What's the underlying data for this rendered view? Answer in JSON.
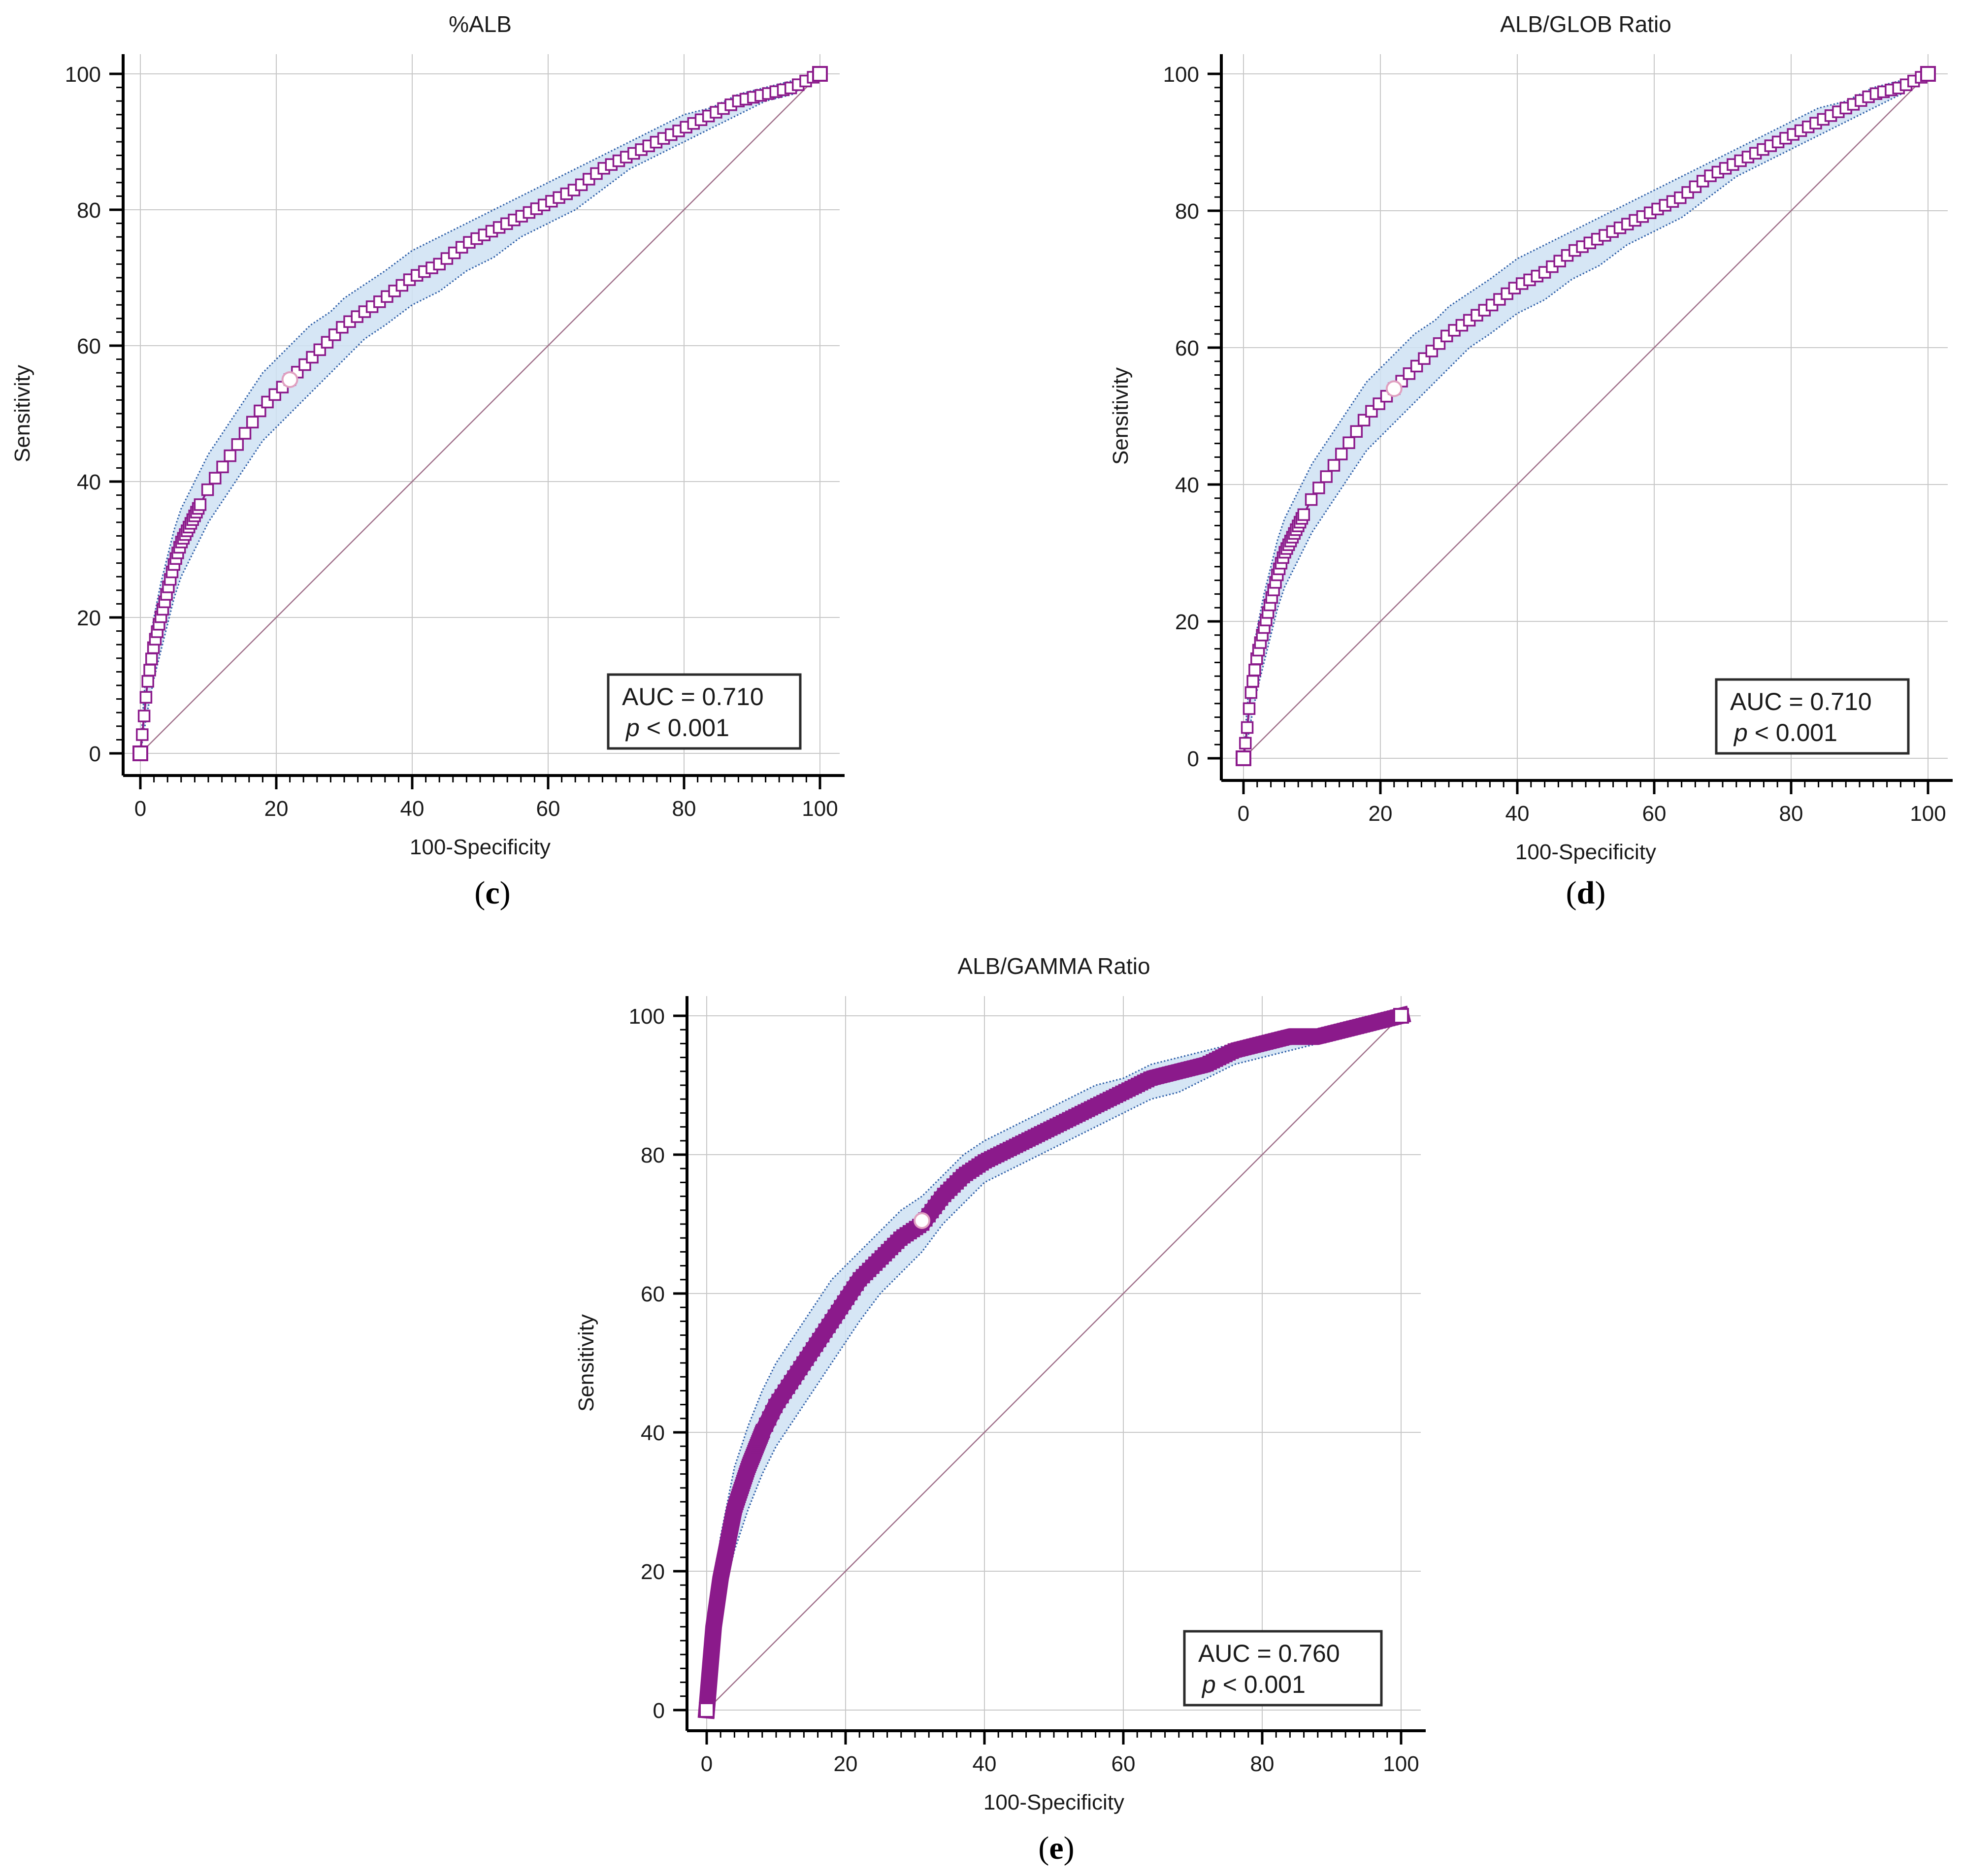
{
  "colors": {
    "curve": "#8b1a8b",
    "marker_fill": "#ffffff",
    "ci_fill": "#cfe2f3",
    "ci_line": "#2e5fa8",
    "diagonal": "#a0708a",
    "grid": "#c8c8c8",
    "axis": "#000000"
  },
  "chart_data": [
    {
      "type": "line",
      "id": "c",
      "title": "%ALB",
      "xlabel": "100-Specificity",
      "ylabel": "Sensitivity",
      "xlim": [
        0,
        100
      ],
      "ylim": [
        0,
        100
      ],
      "xticks": [
        0,
        20,
        40,
        60,
        80,
        100
      ],
      "yticks": [
        0,
        20,
        40,
        60,
        80,
        100
      ],
      "grid": true,
      "panel_label": "c",
      "auc_text": "AUC = 0.710",
      "p_symbol": "p",
      "p_text": " < 0.001",
      "annotation_position": "bottom-right",
      "marker_style": "open-square",
      "series": [
        {
          "x": [
            0,
            0.5,
            1,
            2,
            3,
            4,
            5,
            6,
            8,
            10,
            12,
            14,
            16,
            18,
            20,
            22,
            25,
            28,
            30,
            33,
            36,
            40,
            44,
            48,
            52,
            56,
            60,
            64,
            68,
            72,
            76,
            80,
            84,
            88,
            92,
            96,
            100
          ],
          "y": [
            0,
            5,
            10,
            16,
            20,
            24,
            28,
            31,
            35,
            39,
            42,
            45,
            48,
            51,
            53,
            55,
            58,
            61,
            63,
            65,
            67,
            70,
            72,
            75,
            77,
            79,
            81,
            83,
            86,
            88,
            90,
            92,
            94,
            96,
            97,
            98,
            100
          ]
        }
      ],
      "ci_upper": [
        0,
        8,
        14,
        20,
        25,
        29,
        33,
        36,
        40,
        44,
        47,
        50,
        53,
        56,
        58,
        60,
        63,
        65,
        67,
        69,
        71,
        74,
        76,
        78,
        80,
        82,
        84,
        86,
        88,
        90,
        92,
        94,
        95,
        97,
        98,
        99,
        100
      ],
      "ci_lower": [
        0,
        3,
        6,
        11,
        15,
        19,
        23,
        26,
        30,
        34,
        37,
        40,
        43,
        46,
        48,
        50,
        53,
        56,
        58,
        61,
        63,
        66,
        68,
        71,
        73,
        76,
        78,
        80,
        83,
        86,
        88,
        90,
        92,
        94,
        96,
        97,
        100
      ],
      "cutoff_point": {
        "x": 22,
        "y": 55
      }
    },
    {
      "type": "line",
      "id": "d",
      "title": "ALB/GLOB Ratio",
      "xlabel": "100-Specificity",
      "ylabel": "Sensitivity",
      "xlim": [
        0,
        100
      ],
      "ylim": [
        0,
        100
      ],
      "xticks": [
        0,
        20,
        40,
        60,
        80,
        100
      ],
      "yticks": [
        0,
        20,
        40,
        60,
        80,
        100
      ],
      "grid": true,
      "panel_label": "d",
      "auc_text": "AUC = 0.710",
      "p_symbol": "p",
      "p_text": " < 0.001",
      "annotation_position": "bottom-right",
      "marker_style": "open-square",
      "series": [
        {
          "x": [
            0,
            0.5,
            1,
            2,
            3,
            4,
            5,
            6,
            8,
            10,
            12,
            14,
            16,
            18,
            20,
            22,
            25,
            28,
            30,
            33,
            36,
            40,
            44,
            48,
            52,
            56,
            60,
            64,
            68,
            72,
            76,
            80,
            84,
            88,
            92,
            96,
            100
          ],
          "y": [
            0,
            4,
            9,
            15,
            19,
            23,
            27,
            30,
            34,
            38,
            41,
            44,
            47,
            50,
            52,
            54,
            57,
            60,
            62,
            64,
            66,
            69,
            71,
            74,
            76,
            78,
            80,
            82,
            85,
            87,
            89,
            91,
            93,
            95,
            97,
            98,
            100
          ]
        }
      ],
      "ci_upper": [
        0,
        7,
        13,
        19,
        24,
        28,
        32,
        35,
        39,
        43,
        46,
        49,
        52,
        55,
        57,
        59,
        62,
        64,
        66,
        68,
        70,
        73,
        75,
        77,
        79,
        81,
        83,
        85,
        87,
        89,
        91,
        93,
        95,
        96,
        98,
        99,
        100
      ],
      "ci_lower": [
        0,
        2,
        5,
        10,
        14,
        18,
        22,
        25,
        29,
        33,
        36,
        39,
        42,
        45,
        47,
        49,
        52,
        55,
        57,
        60,
        62,
        65,
        67,
        70,
        72,
        75,
        77,
        79,
        82,
        85,
        87,
        89,
        91,
        93,
        95,
        97,
        100
      ],
      "cutoff_point": {
        "x": 22,
        "y": 54
      }
    },
    {
      "type": "line",
      "id": "e",
      "title": "ALB/GAMMA Ratio",
      "xlabel": "100-Specificity",
      "ylabel": "Sensitivity",
      "xlim": [
        0,
        100
      ],
      "ylim": [
        0,
        100
      ],
      "xticks": [
        0,
        20,
        40,
        60,
        80,
        100
      ],
      "yticks": [
        0,
        20,
        40,
        60,
        80,
        100
      ],
      "grid": true,
      "panel_label": "e",
      "auc_text": "AUC = 0.760",
      "p_symbol": "p",
      "p_text": " < 0.001",
      "annotation_position": "bottom-right",
      "marker_style": "filled-square",
      "series": [
        {
          "x": [
            0,
            0.5,
            1,
            2,
            3,
            4,
            5,
            6,
            8,
            10,
            12,
            14,
            16,
            18,
            20,
            22,
            25,
            28,
            31,
            34,
            37,
            40,
            44,
            48,
            52,
            56,
            60,
            64,
            68,
            72,
            76,
            80,
            84,
            88,
            92,
            96,
            100
          ],
          "y": [
            0,
            6,
            12,
            19,
            24,
            29,
            32,
            35,
            40,
            44,
            47,
            50,
            53,
            56,
            59,
            62,
            65,
            68,
            70,
            74,
            77,
            79,
            81,
            83,
            85,
            87,
            89,
            91,
            92,
            93,
            95,
            96,
            97,
            97,
            98,
            99,
            100
          ]
        }
      ],
      "ci_upper": [
        0,
        10,
        17,
        25,
        30,
        35,
        38,
        41,
        46,
        50,
        53,
        56,
        59,
        62,
        64,
        66,
        69,
        72,
        74,
        77,
        80,
        82,
        84,
        86,
        88,
        90,
        91,
        93,
        94,
        95,
        96,
        97,
        98,
        98,
        99,
        99,
        100
      ],
      "ci_lower": [
        0,
        3,
        8,
        14,
        19,
        23,
        26,
        29,
        34,
        38,
        41,
        44,
        47,
        50,
        53,
        56,
        60,
        63,
        66,
        70,
        73,
        76,
        78,
        80,
        82,
        84,
        86,
        88,
        89,
        91,
        93,
        94,
        95,
        96,
        97,
        98,
        100
      ],
      "cutoff_point": {
        "x": 31,
        "y": 70.5
      }
    }
  ]
}
